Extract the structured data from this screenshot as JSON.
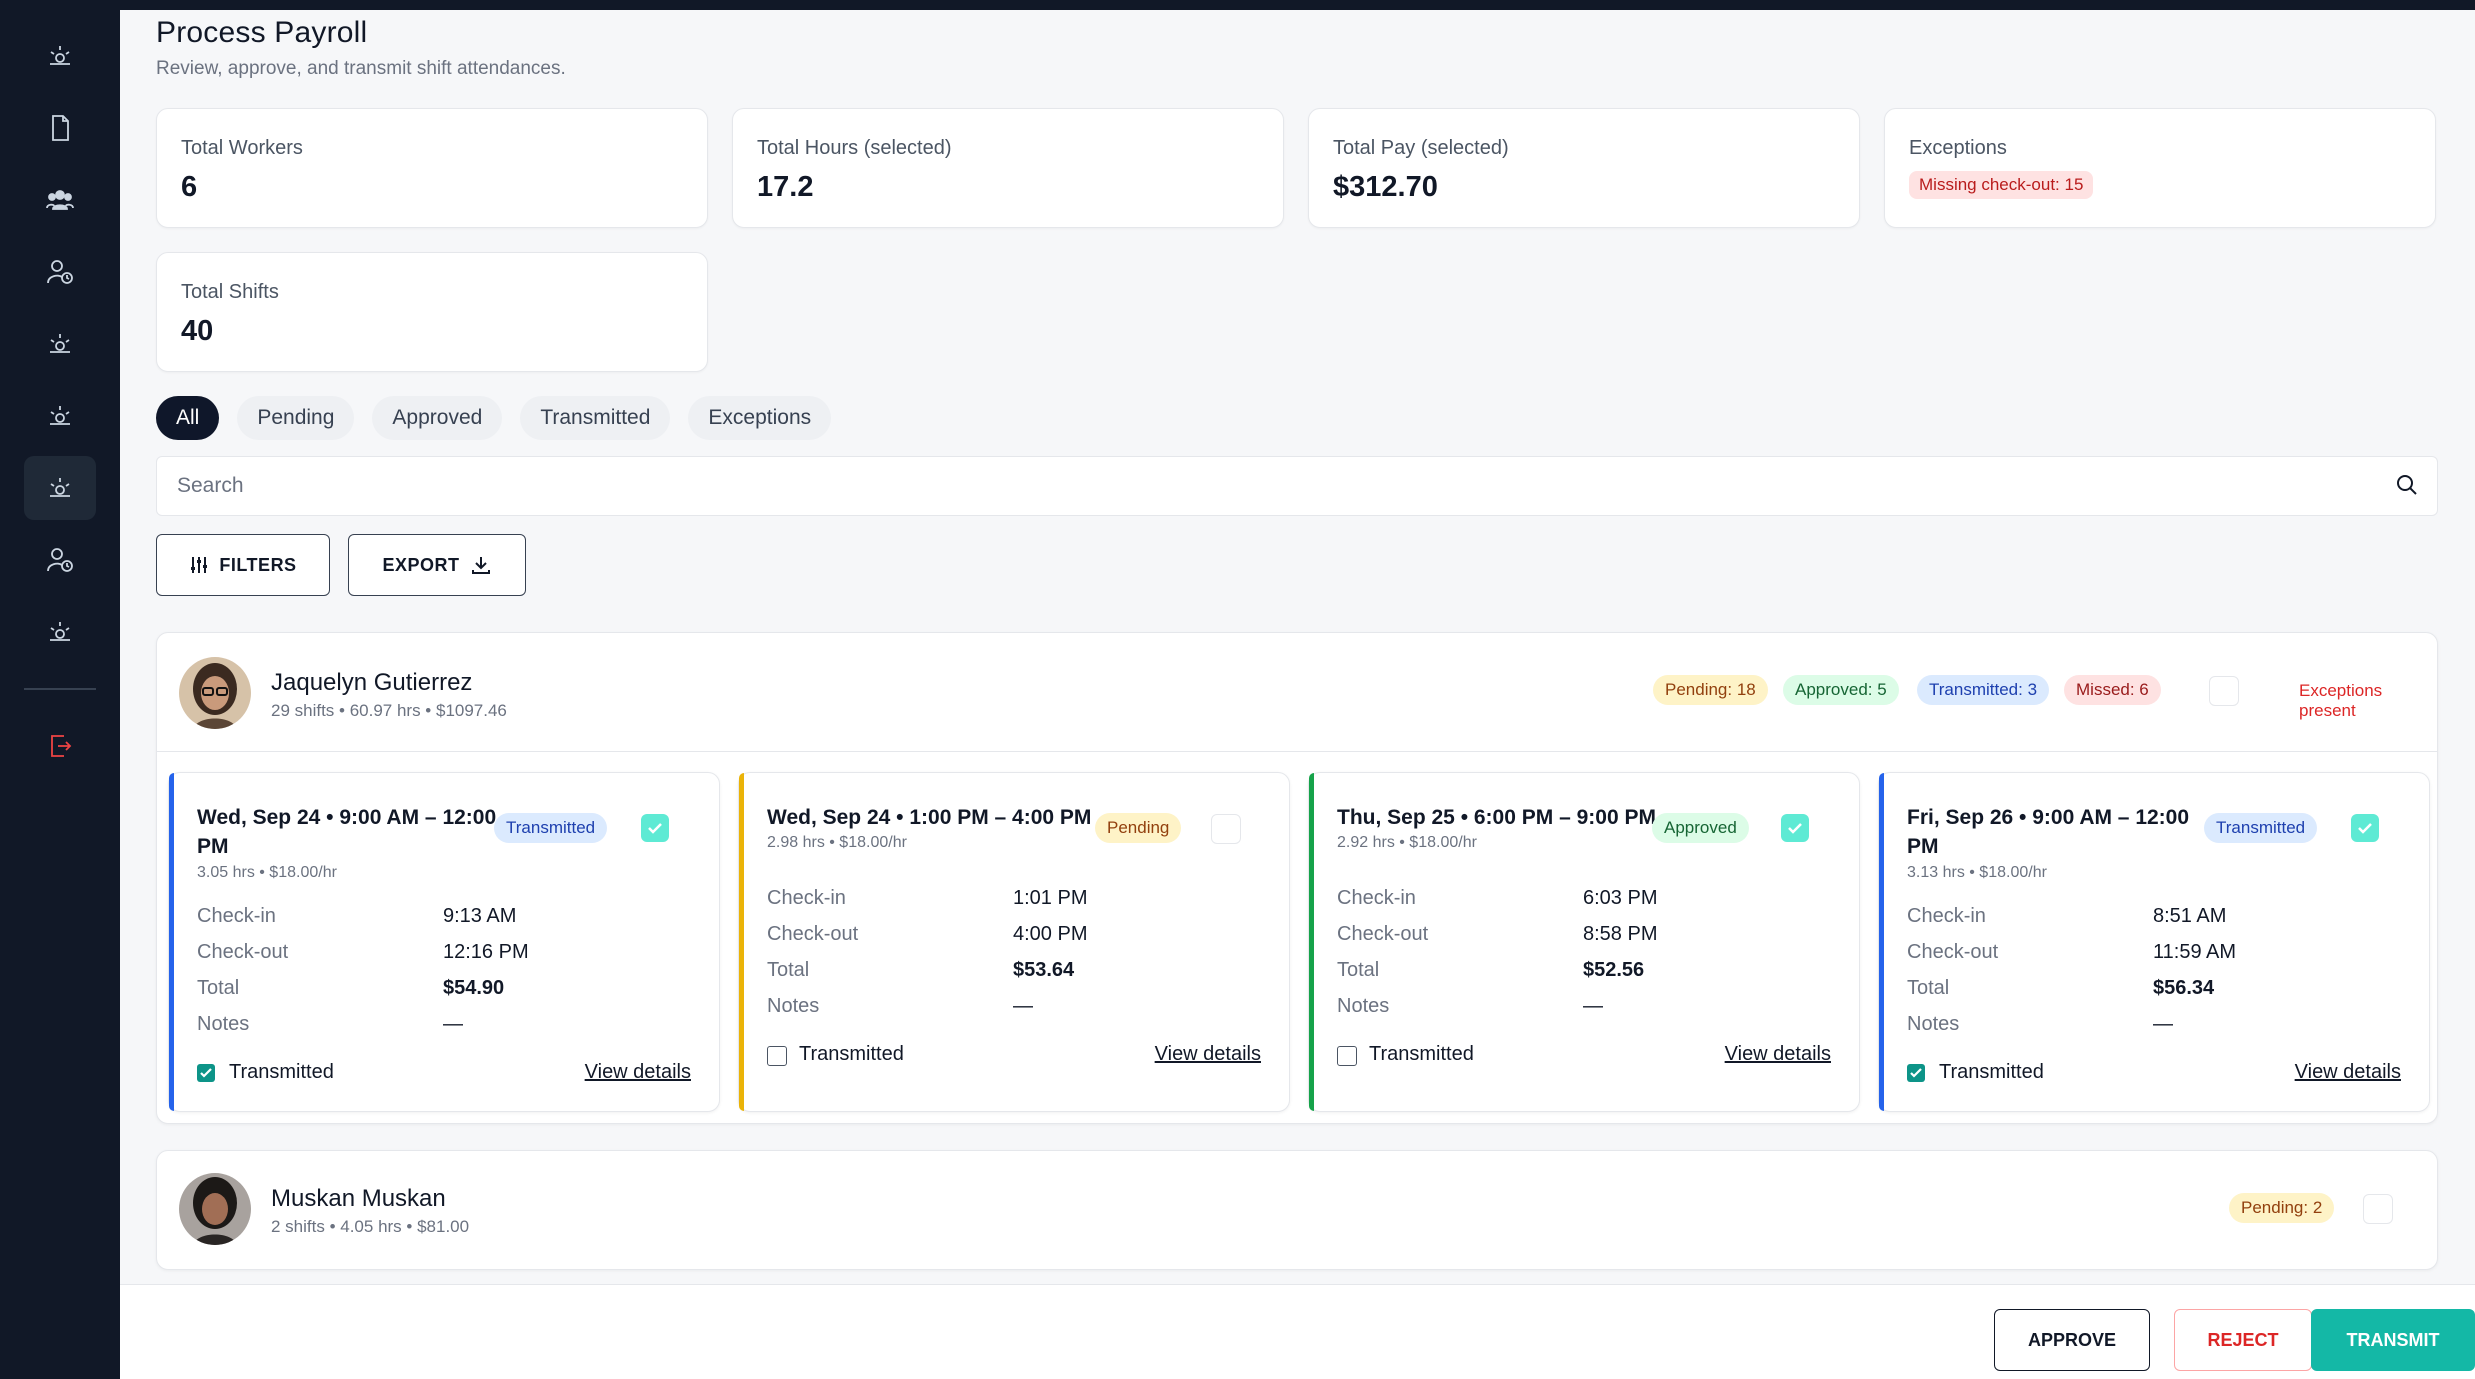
{
  "header": {
    "title": "Process Payroll",
    "subtitle": "Review, approve, and transmit shift attendances."
  },
  "stats": {
    "total_workers_label": "Total Workers",
    "total_workers_value": "6",
    "total_hours_label": "Total Hours (selected)",
    "total_hours_value": "17.2",
    "total_pay_label": "Total Pay (selected)",
    "total_pay_value": "$312.70",
    "exceptions_label": "Exceptions",
    "exceptions_badge": "Missing check-out: 15",
    "total_shifts_label": "Total Shifts",
    "total_shifts_value": "40"
  },
  "tabs": [
    "All",
    "Pending",
    "Approved",
    "Transmitted",
    "Exceptions"
  ],
  "search": {
    "placeholder": "Search"
  },
  "toolbar": {
    "filters_label": "FILTERS",
    "export_label": "EXPORT"
  },
  "workers": [
    {
      "name": "Jaquelyn Gutierrez",
      "meta": "29 shifts • 60.97 hrs • $1097.46",
      "badges": {
        "pending": "Pending: 18",
        "approved": "Approved: 5",
        "transmitted": "Transmitted: 3",
        "missed": "Missed: 6"
      },
      "exceptions_text": "Exceptions present",
      "shifts": [
        {
          "title": "Wed, Sep 24 • 9:00 AM – 12:00 PM",
          "sub": "3.05 hrs • $18.00/hr",
          "status": "Transmitted",
          "checkin": "9:13 AM",
          "checkout": "12:16 PM",
          "total": "$54.90",
          "notes": "—",
          "transmitted_checked": true
        },
        {
          "title": "Wed, Sep 24 • 1:00 PM – 4:00 PM",
          "sub": "2.98 hrs • $18.00/hr",
          "status": "Pending",
          "checkin": "1:01 PM",
          "checkout": "4:00 PM",
          "total": "$53.64",
          "notes": "—",
          "transmitted_checked": false
        },
        {
          "title": "Thu, Sep 25 • 6:00 PM – 9:00 PM",
          "sub": "2.92 hrs • $18.00/hr",
          "status": "Approved",
          "checkin": "6:03 PM",
          "checkout": "8:58 PM",
          "total": "$52.56",
          "notes": "—",
          "transmitted_checked": false
        },
        {
          "title": "Fri, Sep 26 • 9:00 AM – 12:00 PM",
          "sub": "3.13 hrs • $18.00/hr",
          "status": "Transmitted",
          "checkin": "8:51 AM",
          "checkout": "11:59 AM",
          "total": "$56.34",
          "notes": "—",
          "transmitted_checked": true
        }
      ]
    },
    {
      "name": "Muskan Muskan",
      "meta": "2 shifts • 4.05 hrs • $81.00",
      "badges": {
        "pending": "Pending: 2"
      }
    }
  ],
  "shift_labels": {
    "checkin": "Check-in",
    "checkout": "Check-out",
    "total": "Total",
    "notes": "Notes",
    "transmitted": "Transmitted",
    "view_details": "View details"
  },
  "actions": {
    "approve": "APPROVE",
    "reject": "REJECT",
    "transmit": "TRANSMIT"
  },
  "colors": {
    "sidebar": "#111827",
    "accent_teal": "#14b8a6",
    "transmitted_bar": "#2563eb",
    "pending_bar": "#eab308",
    "approved_bar": "#16a34a"
  }
}
